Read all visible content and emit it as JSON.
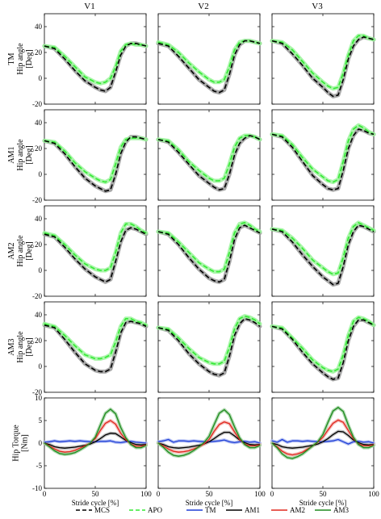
{
  "figure": {
    "columns": [
      "V1",
      "V2",
      "V3"
    ],
    "rows": [
      {
        "label_lines": [
          "TM",
          "Hip angle",
          "[Deg]"
        ]
      },
      {
        "label_lines": [
          "AM1",
          "Hip angle",
          "[Deg]"
        ]
      },
      {
        "label_lines": [
          "AM2",
          "Hip angle",
          "[Deg]"
        ]
      },
      {
        "label_lines": [
          "AM3",
          "Hip angle",
          "[Deg]"
        ]
      },
      {
        "label_lines": [
          "Hip Torque",
          "[Nm]"
        ]
      }
    ],
    "xlabel": "Stride cycle [%]"
  },
  "legend": [
    {
      "name": "MCS",
      "color": "#000000",
      "style": "dashed"
    },
    {
      "name": "APO",
      "color": "#33e833",
      "style": "dashed"
    },
    {
      "name": "TM",
      "color": "#1f3fd6",
      "style": "solid"
    },
    {
      "name": "AM1",
      "color": "#000000",
      "style": "solid"
    },
    {
      "name": "AM2",
      "color": "#e0281f",
      "style": "solid"
    },
    {
      "name": "AM3",
      "color": "#1f8a1f",
      "style": "solid"
    }
  ],
  "chart_data": {
    "type": "line",
    "layout": "grid 5 rows x 3 columns",
    "angle_panels": {
      "xlim": [
        0,
        100
      ],
      "ylim": [
        -20,
        50
      ],
      "xticks": [
        0,
        50,
        100
      ],
      "yticks": [
        -20,
        0,
        20,
        40
      ],
      "x": [
        0,
        10,
        20,
        30,
        40,
        50,
        55,
        60,
        65,
        70,
        75,
        80,
        85,
        90,
        95,
        100
      ],
      "mcs": [
        [
          [
            25,
            23,
            15,
            6,
            -2,
            -7,
            -9,
            -10,
            -7,
            5,
            18,
            25,
            27,
            27,
            26,
            25
          ],
          [
            27,
            25,
            17,
            8,
            -1,
            -7,
            -10,
            -11,
            -9,
            3,
            18,
            26,
            29,
            29,
            28,
            27
          ],
          [
            29,
            27,
            19,
            10,
            0,
            -7,
            -11,
            -14,
            -13,
            -1,
            15,
            25,
            30,
            32,
            31,
            30
          ]
        ],
        [
          [
            26,
            24,
            16,
            6,
            -3,
            -9,
            -11,
            -13,
            -12,
            0,
            16,
            25,
            29,
            29,
            28,
            27
          ],
          [
            27,
            25,
            17,
            8,
            -1,
            -7,
            -10,
            -12,
            -11,
            0,
            15,
            24,
            28,
            30,
            29,
            27
          ],
          [
            31,
            29,
            21,
            10,
            -1,
            -8,
            -11,
            -12,
            -11,
            3,
            20,
            30,
            35,
            34,
            32,
            31
          ]
        ],
        [
          [
            28,
            26,
            18,
            9,
            1,
            -5,
            -7,
            -9,
            -7,
            7,
            22,
            31,
            33,
            32,
            30,
            28
          ],
          [
            30,
            28,
            20,
            10,
            1,
            -6,
            -8,
            -9,
            -7,
            7,
            24,
            33,
            35,
            33,
            31,
            29
          ],
          [
            32,
            30,
            22,
            12,
            3,
            -5,
            -8,
            -11,
            -10,
            3,
            20,
            30,
            35,
            34,
            32,
            30
          ]
        ],
        [
          [
            32,
            30,
            21,
            11,
            2,
            -3,
            -4,
            -4,
            -2,
            11,
            26,
            34,
            35,
            34,
            33,
            31
          ],
          [
            30,
            28,
            20,
            10,
            2,
            -4,
            -6,
            -7,
            -5,
            8,
            24,
            33,
            37,
            36,
            34,
            31
          ],
          [
            31,
            29,
            21,
            11,
            2,
            -5,
            -8,
            -10,
            -9,
            3,
            20,
            31,
            36,
            36,
            34,
            32
          ]
        ]
      ],
      "apo": [
        [
          [
            25,
            24,
            17,
            9,
            1,
            -3,
            -4,
            -3,
            0,
            9,
            21,
            26,
            27,
            26,
            26,
            25
          ],
          [
            28,
            26,
            20,
            12,
            5,
            -1,
            -3,
            -3,
            -1,
            9,
            22,
            28,
            29,
            29,
            28,
            27
          ],
          [
            29,
            28,
            22,
            13,
            4,
            -3,
            -6,
            -8,
            -7,
            4,
            18,
            29,
            33,
            33,
            31,
            30
          ]
        ],
        [
          [
            26,
            25,
            18,
            9,
            2,
            -3,
            -5,
            -6,
            -4,
            8,
            21,
            27,
            28,
            28,
            28,
            27
          ],
          [
            27,
            26,
            19,
            10,
            3,
            -3,
            -5,
            -5,
            -3,
            8,
            21,
            28,
            30,
            30,
            29,
            27
          ],
          [
            31,
            30,
            23,
            13,
            4,
            -2,
            -5,
            -6,
            -4,
            10,
            26,
            35,
            38,
            36,
            33,
            31
          ]
        ],
        [
          [
            29,
            27,
            20,
            12,
            5,
            1,
            0,
            0,
            2,
            14,
            29,
            36,
            36,
            34,
            31,
            29
          ],
          [
            30,
            29,
            22,
            14,
            6,
            1,
            -1,
            -1,
            1,
            14,
            29,
            36,
            37,
            35,
            32,
            30
          ],
          [
            32,
            31,
            25,
            17,
            8,
            2,
            -1,
            -3,
            -2,
            10,
            25,
            34,
            37,
            35,
            33,
            31
          ]
        ],
        [
          [
            33,
            31,
            24,
            16,
            9,
            6,
            6,
            7,
            9,
            19,
            31,
            37,
            37,
            35,
            34,
            32
          ],
          [
            30,
            29,
            22,
            14,
            7,
            3,
            2,
            2,
            4,
            15,
            29,
            37,
            39,
            38,
            36,
            33
          ],
          [
            31,
            30,
            22,
            14,
            5,
            -1,
            -3,
            -4,
            -2,
            9,
            24,
            35,
            38,
            37,
            35,
            32
          ]
        ]
      ]
    },
    "torque_panels": {
      "xlim": [
        0,
        100
      ],
      "ylim": [
        -10,
        10
      ],
      "xticks": [
        0,
        50,
        100
      ],
      "yticks": [
        -10,
        -5,
        0,
        5,
        10
      ],
      "x": [
        0,
        5,
        10,
        15,
        20,
        25,
        30,
        35,
        40,
        45,
        50,
        55,
        60,
        65,
        70,
        75,
        80,
        85,
        90,
        95,
        100
      ],
      "series": [
        {
          "name": "TM",
          "values": [
            [
              0.2,
              0.3,
              0.5,
              0.3,
              0.4,
              0.5,
              0.4,
              0.5,
              0.4,
              0.3,
              0.3,
              0.4,
              0.4,
              0.5,
              0.2,
              0.1,
              0.3,
              0.4,
              0.2,
              0.1,
              0
            ],
            [
              0.3,
              0.5,
              0.8,
              0.2,
              0.5,
              0.5,
              0.4,
              0.5,
              0.4,
              0.3,
              0.3,
              0.4,
              0.5,
              0.7,
              0.3,
              0.1,
              0.3,
              0.4,
              0.2,
              0.3,
              0
            ],
            [
              0.5,
              0.2,
              0.8,
              0.2,
              0.5,
              0.5,
              0.4,
              0.5,
              0.4,
              0.3,
              0.3,
              0.4,
              0.5,
              0.8,
              0.3,
              -0.2,
              0.3,
              0.4,
              0.2,
              0.3,
              0
            ]
          ]
        },
        {
          "name": "AM1",
          "values": [
            [
              0,
              -0.3,
              -0.8,
              -1.0,
              -1.1,
              -1.0,
              -0.9,
              -0.7,
              -0.5,
              -0.2,
              0.3,
              1.0,
              1.8,
              2.2,
              2.1,
              1.4,
              0.6,
              0.1,
              -0.3,
              -0.4,
              -0.3
            ],
            [
              0,
              -0.3,
              -0.8,
              -1.0,
              -1.1,
              -1.0,
              -0.9,
              -0.7,
              -0.5,
              -0.2,
              0.3,
              1.0,
              1.8,
              2.4,
              2.4,
              1.6,
              0.7,
              0.1,
              -0.3,
              -0.4,
              -0.3
            ],
            [
              0,
              -0.3,
              -0.8,
              -1.0,
              -1.1,
              -1.0,
              -0.9,
              -0.7,
              -0.5,
              -0.2,
              0.3,
              1.0,
              1.9,
              2.6,
              2.5,
              1.7,
              0.7,
              0.1,
              -0.3,
              -0.4,
              -0.3
            ]
          ]
        },
        {
          "name": "AM2",
          "values": [
            [
              0,
              -0.6,
              -1.3,
              -1.8,
              -2.0,
              -1.9,
              -1.6,
              -1.1,
              -0.6,
              0,
              1.0,
              2.8,
              4.4,
              5.0,
              4.2,
              2.2,
              0.8,
              -0.2,
              -0.7,
              -0.7,
              -0.4
            ],
            [
              0,
              -0.6,
              -1.3,
              -1.8,
              -2.0,
              -1.9,
              -1.7,
              -1.3,
              -0.8,
              -0.2,
              0.8,
              2.6,
              4.1,
              4.7,
              4.3,
              2.5,
              0.8,
              -0.2,
              -0.6,
              -0.6,
              -0.4
            ],
            [
              0,
              -0.8,
              -1.8,
              -2.4,
              -2.6,
              -2.4,
              -2.0,
              -1.3,
              -0.6,
              0.2,
              1.3,
              2.9,
              4.4,
              5.1,
              4.6,
              2.8,
              1.0,
              -0.2,
              -0.6,
              -0.6,
              -0.4
            ]
          ]
        },
        {
          "name": "AM3",
          "values": [
            [
              0,
              -0.8,
              -1.7,
              -2.3,
              -2.5,
              -2.4,
              -2.1,
              -1.5,
              -0.8,
              0,
              1.3,
              4.0,
              6.6,
              7.5,
              6.5,
              3.5,
              1.2,
              -0.3,
              -1.0,
              -1.0,
              -0.5
            ],
            [
              0,
              -0.9,
              -2.0,
              -2.7,
              -2.9,
              -2.7,
              -2.3,
              -1.6,
              -0.8,
              0.1,
              1.5,
              4.1,
              6.6,
              7.4,
              6.3,
              3.6,
              1.2,
              -0.3,
              -1.0,
              -1.0,
              -0.5
            ],
            [
              0,
              -1.0,
              -2.4,
              -3.2,
              -3.4,
              -3.0,
              -2.4,
              -1.5,
              -0.6,
              0.3,
              1.9,
              4.6,
              7.1,
              7.9,
              7.0,
              4.0,
              1.3,
              -0.3,
              -1.0,
              -1.0,
              -0.5
            ]
          ]
        }
      ]
    }
  }
}
